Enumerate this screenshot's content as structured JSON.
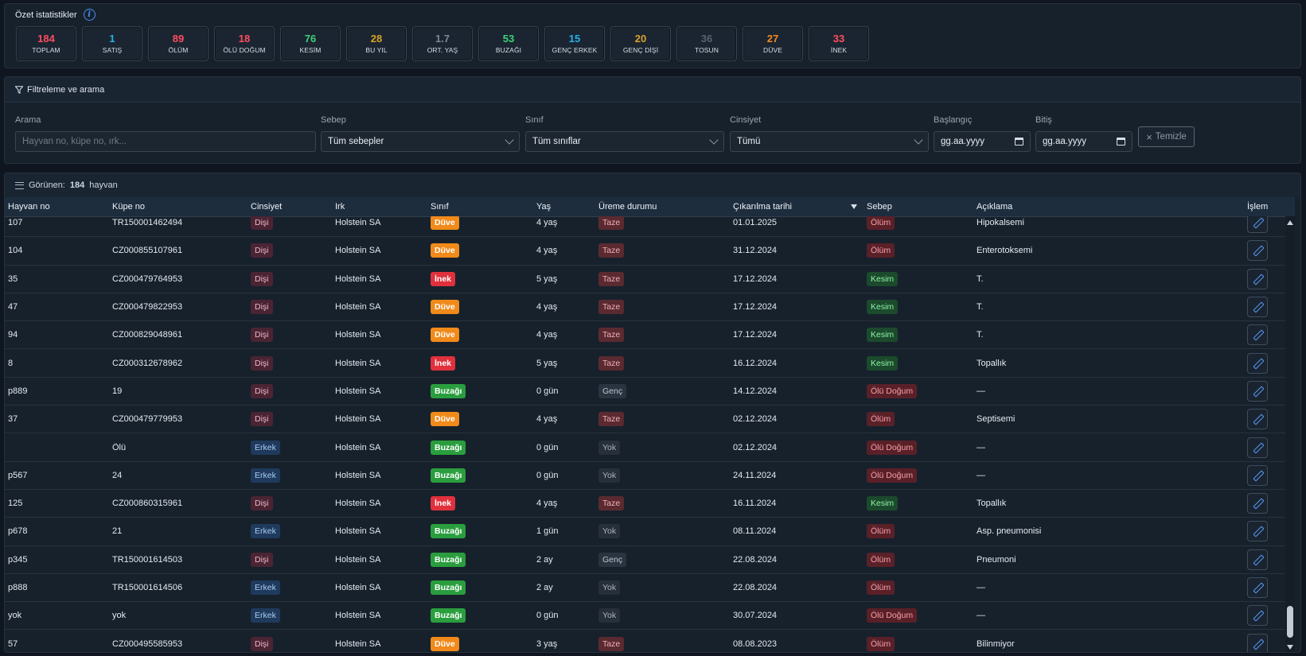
{
  "stats": {
    "title": "Özet istatistikler",
    "cards": [
      {
        "value": "184",
        "label": "TOPLAM",
        "color": "#ff4d5e"
      },
      {
        "value": "1",
        "label": "SATIŞ",
        "color": "#2ab0e8"
      },
      {
        "value": "89",
        "label": "ÖLÜM",
        "color": "#ff4d5e"
      },
      {
        "value": "18",
        "label": "ÖLÜ DOĞUM",
        "color": "#ff4d5e"
      },
      {
        "value": "76",
        "label": "KESİM",
        "color": "#3fd17a"
      },
      {
        "value": "28",
        "label": "BU YIL",
        "color": "#d9a324"
      },
      {
        "value": "1.7",
        "label": "ORT. YAŞ",
        "color": "#7c8894"
      },
      {
        "value": "53",
        "label": "BUZAĞI",
        "color": "#3fd17a"
      },
      {
        "value": "15",
        "label": "GENÇ ERKEK",
        "color": "#2ab0e8"
      },
      {
        "value": "20",
        "label": "GENÇ DİŞİ",
        "color": "#d9a324"
      },
      {
        "value": "36",
        "label": "TOSUN",
        "color": "#58626e"
      },
      {
        "value": "27",
        "label": "DÜVE",
        "color": "#f28a22"
      },
      {
        "value": "33",
        "label": "İNEK",
        "color": "#ff4d5e"
      }
    ]
  },
  "filters": {
    "title": "Filtreleme ve arama",
    "search_label": "Arama",
    "search_placeholder": "Hayvan no, küpe no, ırk...",
    "reason_label": "Sebep",
    "reason_value": "Tüm sebepler",
    "class_label": "Sınıf",
    "class_value": "Tüm sınıflar",
    "gender_label": "Cinsiyet",
    "gender_value": "Tümü",
    "start_label": "Başlangıç",
    "start_value": "gg.aa.yyyy",
    "end_label": "Bitiş",
    "end_value": "gg.aa.yyyy",
    "clear_label": "Temizle"
  },
  "table": {
    "visible_prefix": "Görünen:",
    "visible_count": "184",
    "visible_suffix": "hayvan",
    "columns": [
      "Hayvan no",
      "Küpe no",
      "Cinsiyet",
      "Irk",
      "Sınıf",
      "Yaş",
      "Üreme durumu",
      "Çıkarılma tarihi",
      "Sebep",
      "Açıklama",
      "İşlem"
    ],
    "rows": [
      {
        "no": "107",
        "kupe": "TR150001462494",
        "cins": "Dişi",
        "irk": "Holstein SA",
        "sinif": "Düve",
        "yas": "4 yaş",
        "ureme": "Taze",
        "tarih": "01.01.2025",
        "sebep": "Ölüm",
        "aciklama": "Hipokalsemi"
      },
      {
        "no": "104",
        "kupe": "CZ000855107961",
        "cins": "Dişi",
        "irk": "Holstein SA",
        "sinif": "Düve",
        "yas": "4 yaş",
        "ureme": "Taze",
        "tarih": "31.12.2024",
        "sebep": "Ölüm",
        "aciklama": "Enterotoksemi"
      },
      {
        "no": "35",
        "kupe": "CZ000479764953",
        "cins": "Dişi",
        "irk": "Holstein SA",
        "sinif": "İnek",
        "yas": "5 yaş",
        "ureme": "Taze",
        "tarih": "17.12.2024",
        "sebep": "Kesim",
        "aciklama": "T."
      },
      {
        "no": "47",
        "kupe": "CZ000479822953",
        "cins": "Dişi",
        "irk": "Holstein SA",
        "sinif": "Düve",
        "yas": "4 yaş",
        "ureme": "Taze",
        "tarih": "17.12.2024",
        "sebep": "Kesim",
        "aciklama": "T."
      },
      {
        "no": "94",
        "kupe": "CZ000829048961",
        "cins": "Dişi",
        "irk": "Holstein SA",
        "sinif": "Düve",
        "yas": "4 yaş",
        "ureme": "Taze",
        "tarih": "17.12.2024",
        "sebep": "Kesim",
        "aciklama": "T."
      },
      {
        "no": "8",
        "kupe": "CZ000312678962",
        "cins": "Dişi",
        "irk": "Holstein SA",
        "sinif": "İnek",
        "yas": "5 yaş",
        "ureme": "Taze",
        "tarih": "16.12.2024",
        "sebep": "Kesim",
        "aciklama": "Topallık"
      },
      {
        "no": "p889",
        "kupe": "19",
        "cins": "Dişi",
        "irk": "Holstein SA",
        "sinif": "Buzağı",
        "yas": "0 gün",
        "ureme": "Genç",
        "tarih": "14.12.2024",
        "sebep": "Ölü Doğum",
        "aciklama": "—"
      },
      {
        "no": "37",
        "kupe": "CZ000479779953",
        "cins": "Dişi",
        "irk": "Holstein SA",
        "sinif": "Düve",
        "yas": "4 yaş",
        "ureme": "Taze",
        "tarih": "02.12.2024",
        "sebep": "Ölüm",
        "aciklama": "Septisemi"
      },
      {
        "no": "",
        "kupe": "Ölü",
        "cins": "Erkek",
        "irk": "Holstein SA",
        "sinif": "Buzağı",
        "yas": "0 gün",
        "ureme": "Yok",
        "tarih": "02.12.2024",
        "sebep": "Ölü Doğum",
        "aciklama": "—"
      },
      {
        "no": "p567",
        "kupe": "24",
        "cins": "Erkek",
        "irk": "Holstein SA",
        "sinif": "Buzağı",
        "yas": "0 gün",
        "ureme": "Yok",
        "tarih": "24.11.2024",
        "sebep": "Ölü Doğum",
        "aciklama": "—"
      },
      {
        "no": "125",
        "kupe": "CZ000860315961",
        "cins": "Dişi",
        "irk": "Holstein SA",
        "sinif": "İnek",
        "yas": "4 yaş",
        "ureme": "Taze",
        "tarih": "16.11.2024",
        "sebep": "Kesim",
        "aciklama": "Topallık"
      },
      {
        "no": "p678",
        "kupe": "21",
        "cins": "Erkek",
        "irk": "Holstein SA",
        "sinif": "Buzağı",
        "yas": "1 gün",
        "ureme": "Yok",
        "tarih": "08.11.2024",
        "sebep": "Ölüm",
        "aciklama": "Asp. pneumonisi"
      },
      {
        "no": "p345",
        "kupe": "TR150001614503",
        "cins": "Dişi",
        "irk": "Holstein SA",
        "sinif": "Buzağı",
        "yas": "2 ay",
        "ureme": "Genç",
        "tarih": "22.08.2024",
        "sebep": "Ölüm",
        "aciklama": "Pneumoni"
      },
      {
        "no": "p888",
        "kupe": "TR150001614506",
        "cins": "Erkek",
        "irk": "Holstein SA",
        "sinif": "Buzağı",
        "yas": "2 ay",
        "ureme": "Yok",
        "tarih": "22.08.2024",
        "sebep": "Ölüm",
        "aciklama": "—"
      },
      {
        "no": "yok",
        "kupe": "yok",
        "cins": "Erkek",
        "irk": "Holstein SA",
        "sinif": "Buzağı",
        "yas": "0 gün",
        "ureme": "Yok",
        "tarih": "30.07.2024",
        "sebep": "Ölü Doğum",
        "aciklama": "—"
      },
      {
        "no": "57",
        "kupe": "CZ000495585953",
        "cins": "Dişi",
        "irk": "Holstein SA",
        "sinif": "Düve",
        "yas": "3 yaş",
        "ureme": "Taze",
        "tarih": "08.08.2023",
        "sebep": "Ölüm",
        "aciklama": "Bilinmiyor"
      }
    ]
  }
}
